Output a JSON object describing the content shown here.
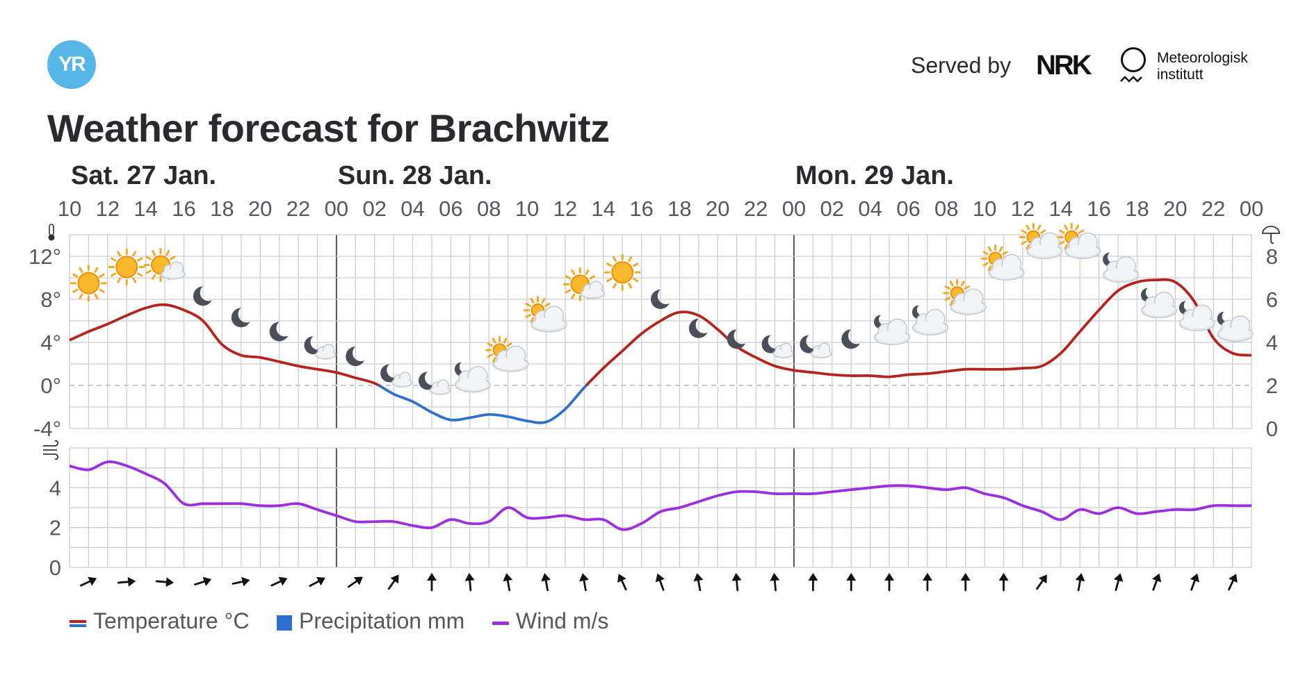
{
  "header": {
    "logo_text": "YR",
    "served_by": "Served by",
    "nrk": "NRK",
    "met_line1": "Meteorologisk",
    "met_line2": "institutt",
    "title": "Weather forecast for Brachwitz"
  },
  "legend": {
    "temperature": "Temperature °C",
    "precipitation": "Precipitation mm",
    "wind": "Wind m/s"
  },
  "colors": {
    "temp_warm": "#b5241c",
    "temp_cold": "#2f6fd0",
    "precipitation": "#2f6fd0",
    "wind": "#9b2fe0",
    "grid": "#c9cdd2",
    "day_divider": "#444444"
  },
  "chart_data": [
    {
      "type": "line",
      "title": "",
      "ylabel": "°C",
      "x": [
        0,
        1,
        2,
        3,
        4,
        5,
        6,
        7,
        8,
        9,
        10,
        11,
        12,
        13,
        14,
        15,
        16,
        17,
        18,
        19,
        20,
        21,
        22,
        23,
        24,
        25,
        26,
        27,
        28,
        29,
        30,
        31,
        32,
        33,
        34,
        35,
        36,
        37,
        38,
        39,
        40,
        41,
        42,
        43,
        44,
        45,
        46,
        47,
        48,
        49,
        50,
        51,
        52,
        53,
        54,
        55,
        56,
        57,
        58,
        59,
        60,
        61,
        62
      ],
      "x_tick_labels": [
        "10",
        "12",
        "14",
        "16",
        "18",
        "20",
        "22",
        "00",
        "02",
        "04",
        "06",
        "08",
        "10",
        "12",
        "14",
        "16",
        "18",
        "20",
        "22",
        "00",
        "02",
        "04",
        "06",
        "08",
        "10",
        "12",
        "14",
        "16",
        "18",
        "20",
        "22",
        "00"
      ],
      "x_start": "Sat 27 Jan 10:00",
      "x_step_hours": 1,
      "day_labels": [
        "Sat. 27 Jan.",
        "Sun. 28 Jan.",
        "Mon. 29 Jan."
      ],
      "series": [
        {
          "name": "Temperature °C",
          "values": [
            4.2,
            5.0,
            5.7,
            6.5,
            7.2,
            7.5,
            7.0,
            6.0,
            3.8,
            2.8,
            2.6,
            2.2,
            1.8,
            1.5,
            1.2,
            0.7,
            0.2,
            -0.8,
            -1.5,
            -2.5,
            -3.2,
            -3.0,
            -2.7,
            -2.9,
            -3.3,
            -3.4,
            -2.2,
            -0.2,
            1.6,
            3.2,
            4.8,
            6.0,
            6.8,
            6.5,
            5.2,
            3.6,
            2.6,
            1.8,
            1.4,
            1.2,
            1.0,
            0.9,
            0.9,
            0.8,
            1.0,
            1.1,
            1.3,
            1.5,
            1.5,
            1.5,
            1.6,
            1.8,
            3.0,
            5.0,
            7.0,
            8.8,
            9.6,
            9.8,
            9.6,
            7.8,
            4.4,
            3.0,
            2.8
          ]
        }
      ],
      "ylim": [
        -4,
        14
      ],
      "y_ticks": [
        "12°",
        "8°",
        "4°",
        "0°",
        "-4°"
      ],
      "secondary_ylabel": "mm",
      "secondary_ylim": [
        0,
        9
      ],
      "secondary_y_ticks": [
        "8",
        "6",
        "4",
        "2",
        "0"
      ],
      "precipitation_mm": 0,
      "weather_symbols": [
        {
          "x": 1,
          "symbol": "clear-sky-day",
          "y": 9.5
        },
        {
          "x": 3,
          "symbol": "clear-sky-day",
          "y": 11.0
        },
        {
          "x": 5,
          "symbol": "fair-day",
          "y": 11.0
        },
        {
          "x": 7,
          "symbol": "clear-sky-night",
          "y": 8.3
        },
        {
          "x": 9,
          "symbol": "clear-sky-night",
          "y": 6.3
        },
        {
          "x": 11,
          "symbol": "clear-sky-night",
          "y": 5.0
        },
        {
          "x": 13,
          "symbol": "fair-night",
          "y": 3.6
        },
        {
          "x": 15,
          "symbol": "clear-sky-night",
          "y": 2.7
        },
        {
          "x": 17,
          "symbol": "fair-night",
          "y": 1.0
        },
        {
          "x": 19,
          "symbol": "fair-night",
          "y": 0.3
        },
        {
          "x": 21,
          "symbol": "partly-cloudy-night",
          "y": 0.6
        },
        {
          "x": 23,
          "symbol": "partly-cloudy-day",
          "y": 2.5
        },
        {
          "x": 25,
          "symbol": "partly-cloudy-day",
          "y": 6.2
        },
        {
          "x": 27,
          "symbol": "fair-day",
          "y": 9.2
        },
        {
          "x": 29,
          "symbol": "clear-sky-day",
          "y": 10.5
        },
        {
          "x": 31,
          "symbol": "clear-sky-night",
          "y": 8.0
        },
        {
          "x": 33,
          "symbol": "clear-sky-night",
          "y": 5.3
        },
        {
          "x": 35,
          "symbol": "clear-sky-night",
          "y": 4.3
        },
        {
          "x": 37,
          "symbol": "fair-night",
          "y": 3.7
        },
        {
          "x": 39,
          "symbol": "fair-night",
          "y": 3.7
        },
        {
          "x": 41,
          "symbol": "clear-sky-night",
          "y": 4.3
        },
        {
          "x": 43,
          "symbol": "partly-cloudy-night",
          "y": 5.0
        },
        {
          "x": 45,
          "symbol": "partly-cloudy-night",
          "y": 5.9
        },
        {
          "x": 47,
          "symbol": "partly-cloudy-day",
          "y": 7.8
        },
        {
          "x": 49,
          "symbol": "partly-cloudy-day",
          "y": 11.0
        },
        {
          "x": 51,
          "symbol": "partly-cloudy-day",
          "y": 13.0
        },
        {
          "x": 53,
          "symbol": "partly-cloudy-day",
          "y": 13.0
        },
        {
          "x": 55,
          "symbol": "partly-cloudy-night",
          "y": 10.8
        },
        {
          "x": 57,
          "symbol": "partly-cloudy-night",
          "y": 7.5
        },
        {
          "x": 59,
          "symbol": "partly-cloudy-night",
          "y": 6.3
        },
        {
          "x": 61,
          "symbol": "partly-cloudy-night",
          "y": 5.3
        }
      ]
    },
    {
      "type": "line",
      "title": "",
      "ylabel": "m/s",
      "x": [
        0,
        1,
        2,
        3,
        4,
        5,
        6,
        7,
        8,
        9,
        10,
        11,
        12,
        13,
        14,
        15,
        16,
        17,
        18,
        19,
        20,
        21,
        22,
        23,
        24,
        25,
        26,
        27,
        28,
        29,
        30,
        31,
        32,
        33,
        34,
        35,
        36,
        37,
        38,
        39,
        40,
        41,
        42,
        43,
        44,
        45,
        46,
        47,
        48,
        49,
        50,
        51,
        52,
        53,
        54,
        55,
        56,
        57,
        58,
        59,
        60,
        61,
        62
      ],
      "series": [
        {
          "name": "Wind m/s",
          "values": [
            5.1,
            4.9,
            5.3,
            5.1,
            4.7,
            4.2,
            3.2,
            3.2,
            3.2,
            3.2,
            3.1,
            3.1,
            3.2,
            2.9,
            2.6,
            2.3,
            2.3,
            2.3,
            2.1,
            2.0,
            2.4,
            2.2,
            2.3,
            3.0,
            2.5,
            2.5,
            2.6,
            2.4,
            2.4,
            1.9,
            2.2,
            2.8,
            3.0,
            3.3,
            3.6,
            3.8,
            3.8,
            3.7,
            3.7,
            3.7,
            3.8,
            3.9,
            4.0,
            4.1,
            4.1,
            4.0,
            3.9,
            4.0,
            3.7,
            3.5,
            3.1,
            2.8,
            2.4,
            2.9,
            2.7,
            3.0,
            2.7,
            2.8,
            2.9,
            2.9,
            3.1,
            3.1,
            3.1
          ]
        }
      ],
      "ylim": [
        0,
        6
      ],
      "y_ticks": [
        "4",
        "2",
        "0"
      ],
      "wind_direction_arrows": [
        {
          "x": 1,
          "rotate_deg": 65
        },
        {
          "x": 3,
          "rotate_deg": 85
        },
        {
          "x": 5,
          "rotate_deg": 95
        },
        {
          "x": 7,
          "rotate_deg": 72
        },
        {
          "x": 9,
          "rotate_deg": 78
        },
        {
          "x": 11,
          "rotate_deg": 65
        },
        {
          "x": 13,
          "rotate_deg": 62
        },
        {
          "x": 15,
          "rotate_deg": 55
        },
        {
          "x": 17,
          "rotate_deg": 35
        },
        {
          "x": 19,
          "rotate_deg": 0
        },
        {
          "x": 21,
          "rotate_deg": -5
        },
        {
          "x": 23,
          "rotate_deg": -10
        },
        {
          "x": 25,
          "rotate_deg": -10
        },
        {
          "x": 27,
          "rotate_deg": -10
        },
        {
          "x": 29,
          "rotate_deg": -25
        },
        {
          "x": 31,
          "rotate_deg": -20
        },
        {
          "x": 33,
          "rotate_deg": -10
        },
        {
          "x": 35,
          "rotate_deg": -5
        },
        {
          "x": 37,
          "rotate_deg": -5
        },
        {
          "x": 39,
          "rotate_deg": 0
        },
        {
          "x": 41,
          "rotate_deg": 0
        },
        {
          "x": 43,
          "rotate_deg": 0
        },
        {
          "x": 45,
          "rotate_deg": 0
        },
        {
          "x": 47,
          "rotate_deg": 0
        },
        {
          "x": 49,
          "rotate_deg": 0
        },
        {
          "x": 51,
          "rotate_deg": 35
        },
        {
          "x": 53,
          "rotate_deg": 10
        },
        {
          "x": 55,
          "rotate_deg": 15
        },
        {
          "x": 57,
          "rotate_deg": 20
        },
        {
          "x": 59,
          "rotate_deg": 20
        },
        {
          "x": 61,
          "rotate_deg": 25
        }
      ]
    }
  ]
}
